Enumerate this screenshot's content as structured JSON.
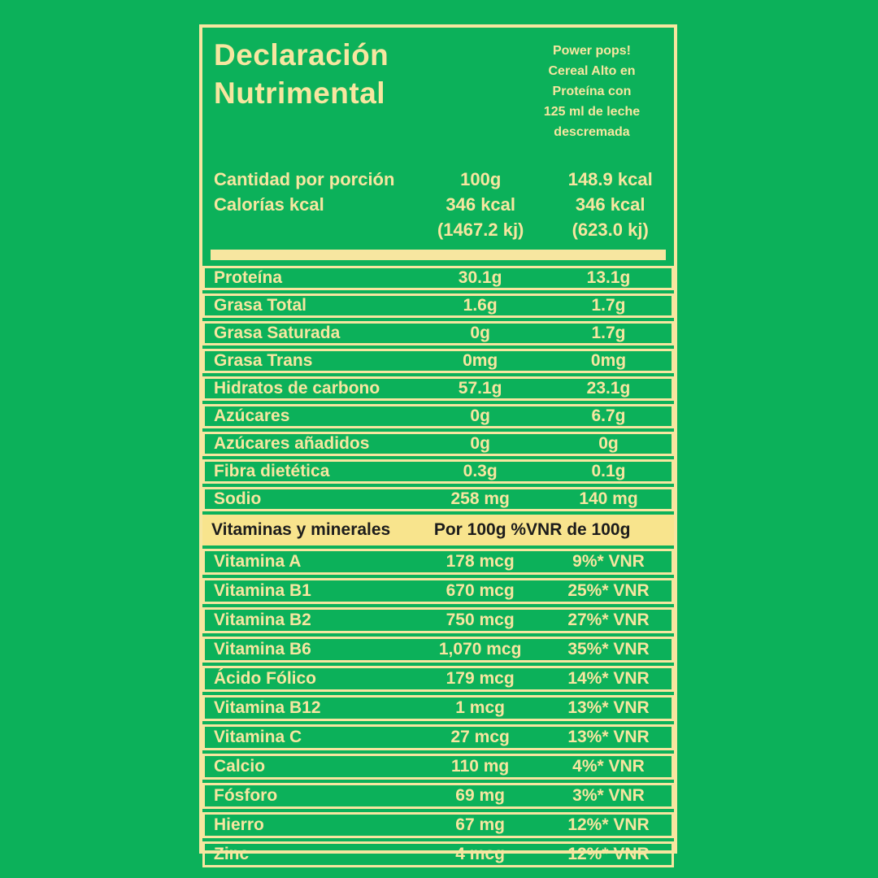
{
  "colors": {
    "background": "#0cb15a",
    "cream": "#f7e6a0",
    "band_bg": "#f8e48d",
    "band_text": "#1c1c1c"
  },
  "label": {
    "title_lines": [
      "Declaración",
      "Nutrimental"
    ],
    "product_lines": [
      "Power pops!",
      "Cereal Alto en",
      "Proteína con",
      "125 ml de leche",
      "descremada"
    ],
    "amounts": [
      {
        "label": "Cantidad por porción",
        "per100": "100g",
        "portion": "148.9 kcal"
      },
      {
        "label": "Calorías kcal",
        "per100": "346 kcal",
        "portion": "346 kcal"
      },
      {
        "label": "",
        "per100": "(1467.2 kj)",
        "portion": "(623.0 kj)"
      }
    ],
    "nutrients": [
      {
        "label": "Proteína",
        "per100": "30.1g",
        "portion": "13.1g"
      },
      {
        "label": "Grasa Total",
        "per100": "1.6g",
        "portion": "1.7g"
      },
      {
        "label": "Grasa Saturada",
        "per100": "0g",
        "portion": "1.7g"
      },
      {
        "label": "Grasa Trans",
        "per100": "0mg",
        "portion": "0mg"
      },
      {
        "label": "Hidratos de carbono",
        "per100": "57.1g",
        "portion": "23.1g"
      },
      {
        "label": "Azúcares",
        "per100": "0g",
        "portion": "6.7g"
      },
      {
        "label": "Azúcares añadidos",
        "per100": "0g",
        "portion": "0g"
      },
      {
        "label": "Fibra dietética",
        "per100": "0.3g",
        "portion": "0.1g"
      },
      {
        "label": "Sodio",
        "per100": "258 mg",
        "portion": "140 mg"
      }
    ],
    "vitamins_header": {
      "label": "Vitaminas y minerales",
      "columns": "Por 100g %VNR de 100g"
    },
    "vitamins": [
      {
        "label": "Vitamina A",
        "per100": "178 mcg",
        "portion": "9%* VNR"
      },
      {
        "label": "Vitamina B1",
        "per100": "670 mcg",
        "portion": "25%* VNR"
      },
      {
        "label": "Vitamina B2",
        "per100": "750 mcg",
        "portion": "27%* VNR"
      },
      {
        "label": "Vitamina B6",
        "per100": "1,070 mcg",
        "portion": "35%* VNR"
      },
      {
        "label": "Ácido Fólico",
        "per100": "179 mcg",
        "portion": "14%* VNR"
      },
      {
        "label": "Vitamina B12",
        "per100": "1 mcg",
        "portion": "13%* VNR"
      },
      {
        "label": "Vitamina C",
        "per100": "27 mcg",
        "portion": "13%* VNR"
      },
      {
        "label": "Calcio",
        "per100": "110 mg",
        "portion": "4%* VNR"
      },
      {
        "label": "Fósforo",
        "per100": "69 mg",
        "portion": "3%* VNR"
      },
      {
        "label": "Hierro",
        "per100": "67 mg",
        "portion": "12%* VNR"
      },
      {
        "label": "Zinc",
        "per100": "4 mcg",
        "portion": "12%* VNR"
      }
    ]
  }
}
